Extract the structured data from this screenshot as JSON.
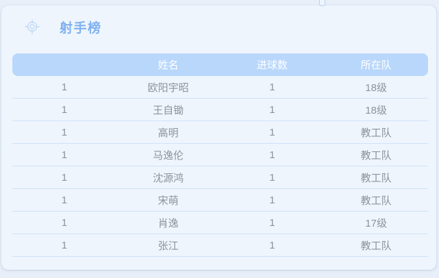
{
  "page": {
    "title": "射手榜"
  },
  "icons": {
    "title_icon": "crosshair-target-icon"
  },
  "colors": {
    "page_bg": "#e9eff8",
    "card_bg": "#eff5fd",
    "accent": "#7fb1f1",
    "header_bg": "#b9d7fb",
    "header_text": "#ffffff",
    "divider": "#cde2f8",
    "cell_text": "#8d939b",
    "icon_color": "#c2daf7"
  },
  "table": {
    "columns": [
      {
        "key": "rank",
        "label": ""
      },
      {
        "key": "name",
        "label": "姓名"
      },
      {
        "key": "goals",
        "label": "进球数"
      },
      {
        "key": "team",
        "label": "所在队"
      }
    ],
    "rows": [
      {
        "rank": "1",
        "name": "欧阳宇昭",
        "goals": "1",
        "team": "18级"
      },
      {
        "rank": "1",
        "name": "王自锄",
        "goals": "1",
        "team": "18级"
      },
      {
        "rank": "1",
        "name": "高明",
        "goals": "1",
        "team": "教工队"
      },
      {
        "rank": "1",
        "name": "马逸伦",
        "goals": "1",
        "team": "教工队"
      },
      {
        "rank": "1",
        "name": "沈源鸿",
        "goals": "1",
        "team": "教工队"
      },
      {
        "rank": "1",
        "name": "宋萌",
        "goals": "1",
        "team": "教工队"
      },
      {
        "rank": "1",
        "name": "肖逸",
        "goals": "1",
        "team": "17级"
      },
      {
        "rank": "1",
        "name": "张江",
        "goals": "1",
        "team": "教工队"
      }
    ]
  }
}
